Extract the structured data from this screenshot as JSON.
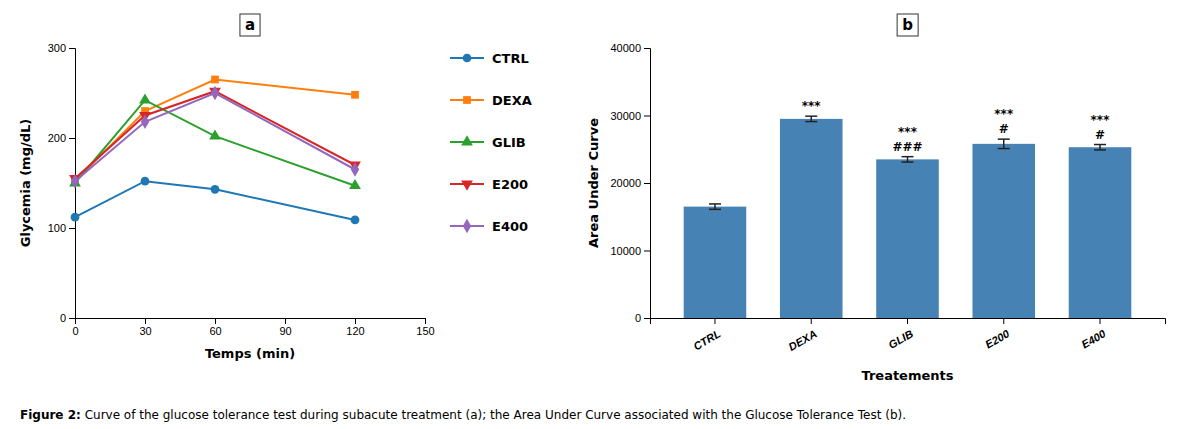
{
  "chart_data": [
    {
      "type": "line",
      "title": "a",
      "x": [
        0,
        30,
        60,
        120
      ],
      "series": [
        {
          "name": "CTRL",
          "values": [
            112,
            152,
            143,
            109
          ],
          "marker": "circle"
        },
        {
          "name": "DEXA",
          "values": [
            152,
            230,
            265,
            248
          ],
          "marker": "square"
        },
        {
          "name": "GLIB",
          "values": [
            150,
            242,
            202,
            147
          ],
          "marker": "triangle-up"
        },
        {
          "name": "E200",
          "values": [
            155,
            225,
            252,
            170
          ],
          "marker": "triangle-down"
        },
        {
          "name": "E400",
          "values": [
            152,
            218,
            250,
            165
          ],
          "marker": "diamond"
        }
      ],
      "xlabel": "Temps (min)",
      "ylabel": "Glycemia (mg/dL)",
      "xlim": [
        0,
        150
      ],
      "ylim": [
        0,
        300
      ],
      "xticks": [
        0,
        30,
        60,
        90,
        120,
        150
      ],
      "yticks": [
        0,
        100,
        200,
        300
      ],
      "grid": false,
      "legend": "right",
      "annotations": [
        "Figure 2:",
        " Curve of the glucose tolerance test during subacute treatment (a); the Area Under Curve associated with the Glucose Tolerance Test (b)."
      ]
    },
    {
      "type": "bar",
      "title": "b",
      "categories": [
        "CTRL",
        "DEXA",
        "GLIB",
        "E200",
        "E400"
      ],
      "values": [
        16500,
        29500,
        23500,
        25800,
        25300
      ],
      "errors": [
        400,
        400,
        400,
        700,
        400
      ],
      "xlabel": "Treatements",
      "ylabel": "Area Under Curve",
      "ylim": [
        0,
        40000
      ],
      "yticks": [
        0,
        10000,
        20000,
        30000,
        40000
      ],
      "grid": false,
      "annotations": [
        {
          "category": "DEXA",
          "text": "***"
        },
        {
          "category": "GLIB",
          "text": "###"
        },
        {
          "category": "GLIB",
          "text": "***"
        },
        {
          "category": "E200",
          "text": "#"
        },
        {
          "category": "E200",
          "text": "***"
        },
        {
          "category": "E400",
          "text": "#"
        },
        {
          "category": "E400",
          "text": "***"
        }
      ]
    }
  ]
}
